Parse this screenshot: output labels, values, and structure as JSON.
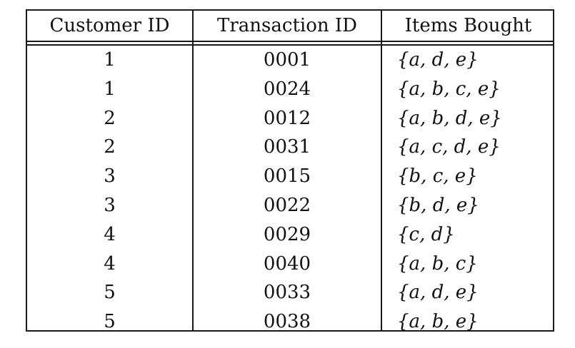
{
  "table": {
    "headers": [
      "Customer ID",
      "Transaction ID",
      "Items Bought"
    ],
    "rows": [
      {
        "customer_id": "1",
        "transaction_id": "0001",
        "items": "{a, d, e}"
      },
      {
        "customer_id": "1",
        "transaction_id": "0024",
        "items": "{a, b, c, e}"
      },
      {
        "customer_id": "2",
        "transaction_id": "0012",
        "items": "{a, b, d, e}"
      },
      {
        "customer_id": "2",
        "transaction_id": "0031",
        "items": "{a, c, d, e}"
      },
      {
        "customer_id": "3",
        "transaction_id": "0015",
        "items": "{b, c, e}"
      },
      {
        "customer_id": "3",
        "transaction_id": "0022",
        "items": "{b, d, e}"
      },
      {
        "customer_id": "4",
        "transaction_id": "0029",
        "items": "{c, d}"
      },
      {
        "customer_id": "4",
        "transaction_id": "0040",
        "items": "{a, b, c}"
      },
      {
        "customer_id": "5",
        "transaction_id": "0033",
        "items": "{a, d, e}"
      },
      {
        "customer_id": "5",
        "transaction_id": "0038",
        "items": "{a, b, e}"
      }
    ]
  }
}
